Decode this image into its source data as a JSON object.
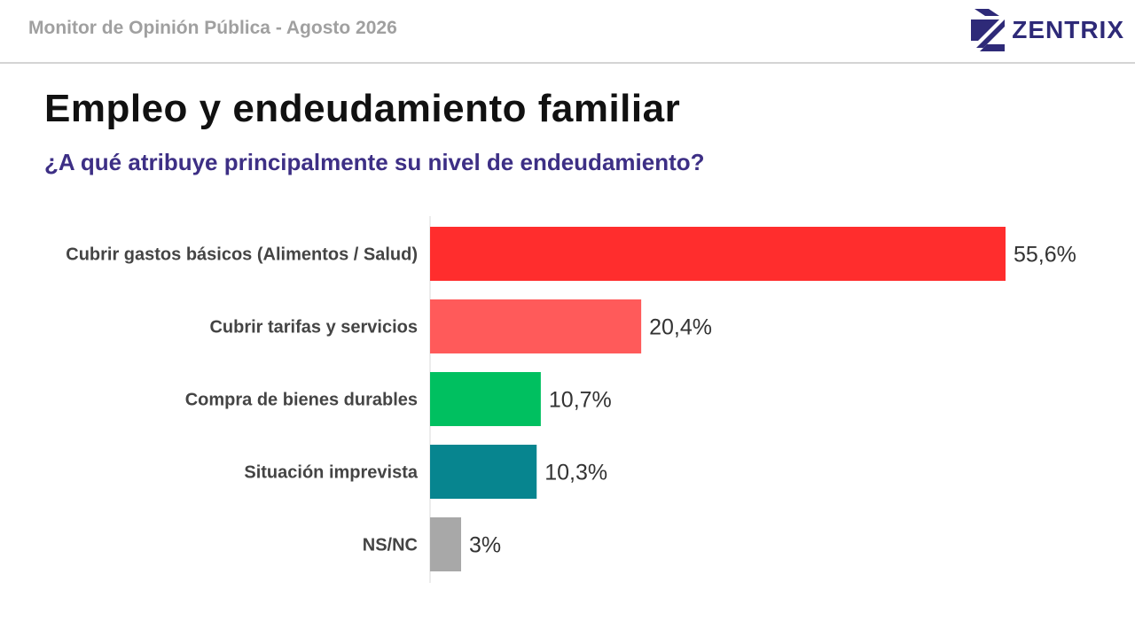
{
  "header": {
    "title": "Monitor de Opinión Pública - Agosto 2026",
    "brand_name": "ZENTRIX",
    "brand_icon": "zentrix-logo-icon"
  },
  "colors": {
    "brand": "#2e2a78",
    "subtitle": "#3d2f85",
    "header_text": "#a0a0a0"
  },
  "main": {
    "title": "Empleo y endeudamiento familiar",
    "subtitle": "¿A qué atribuye principalmente su nivel de endeudamiento?"
  },
  "chart_data": {
    "type": "bar",
    "orientation": "horizontal",
    "categories": [
      "Cubrir gastos básicos (Alimentos / Salud)",
      "Cubrir tarifas y servicios",
      "Compra de bienes durables",
      "Situación imprevista",
      "NS/NC"
    ],
    "values": [
      55.6,
      20.4,
      10.7,
      10.3,
      3
    ],
    "value_labels": [
      "55,6%",
      "20,4%",
      "10,7%",
      "10,3%",
      "3%"
    ],
    "bar_colors": [
      "#ff2d2d",
      "#ff5a5a",
      "#00c060",
      "#07858f",
      "#a8a8a8"
    ],
    "xlim": [
      0,
      60
    ],
    "unit": "%",
    "grid": false,
    "legend": "none",
    "title": "",
    "xlabel": "",
    "ylabel": ""
  }
}
